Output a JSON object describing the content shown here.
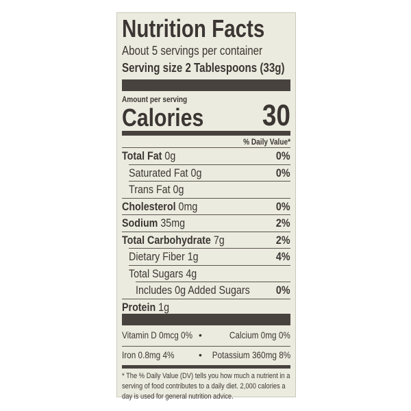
{
  "title": "Nutrition Facts",
  "servings": "About 5 servings per container",
  "serving_size": "Serving size 2 Tablespoons (33g)",
  "amount_per_serving": "Amount per serving",
  "calories": {
    "label": "Calories",
    "value": "30"
  },
  "daily_value_header": "% Daily Value*",
  "nutrients": [
    {
      "name": "Total Fat",
      "amount": "0g",
      "dv": "0%"
    },
    {
      "name": "Saturated Fat",
      "amount": "0g",
      "dv": "0%"
    },
    {
      "name": "Trans Fat",
      "amount": "0g"
    },
    {
      "name": "Cholesterol",
      "amount": "0mg",
      "dv": "0%"
    },
    {
      "name": "Sodium",
      "amount": "35mg",
      "dv": "2%"
    },
    {
      "name": "Total Carbohydrate",
      "amount": "7g",
      "dv": "2%"
    },
    {
      "name": "Dietary Fiber",
      "amount": "1g",
      "dv": "4%"
    },
    {
      "name": "Total Sugars",
      "amount": "4g"
    },
    {
      "name": "Includes 0g Added Sugars",
      "dv": "0%"
    },
    {
      "name": "Protein",
      "amount": "1g"
    }
  ],
  "micronutrients": [
    {
      "name": "Vitamin D",
      "amount": "0mcg",
      "dv": "0%"
    },
    {
      "name": "Calcium",
      "amount": "0mg",
      "dv": "0%"
    },
    {
      "name": "Iron",
      "amount": "0.8mg",
      "dv": "4%"
    },
    {
      "name": "Potassium",
      "amount": "360mg",
      "dv": "8%"
    }
  ],
  "separator": "•",
  "footnote": "* The % Daily Value (DV) tells you how much a nutrient in a serving of food contributes to a daily diet. 2,000 calories a day is used for general nutrition advice."
}
